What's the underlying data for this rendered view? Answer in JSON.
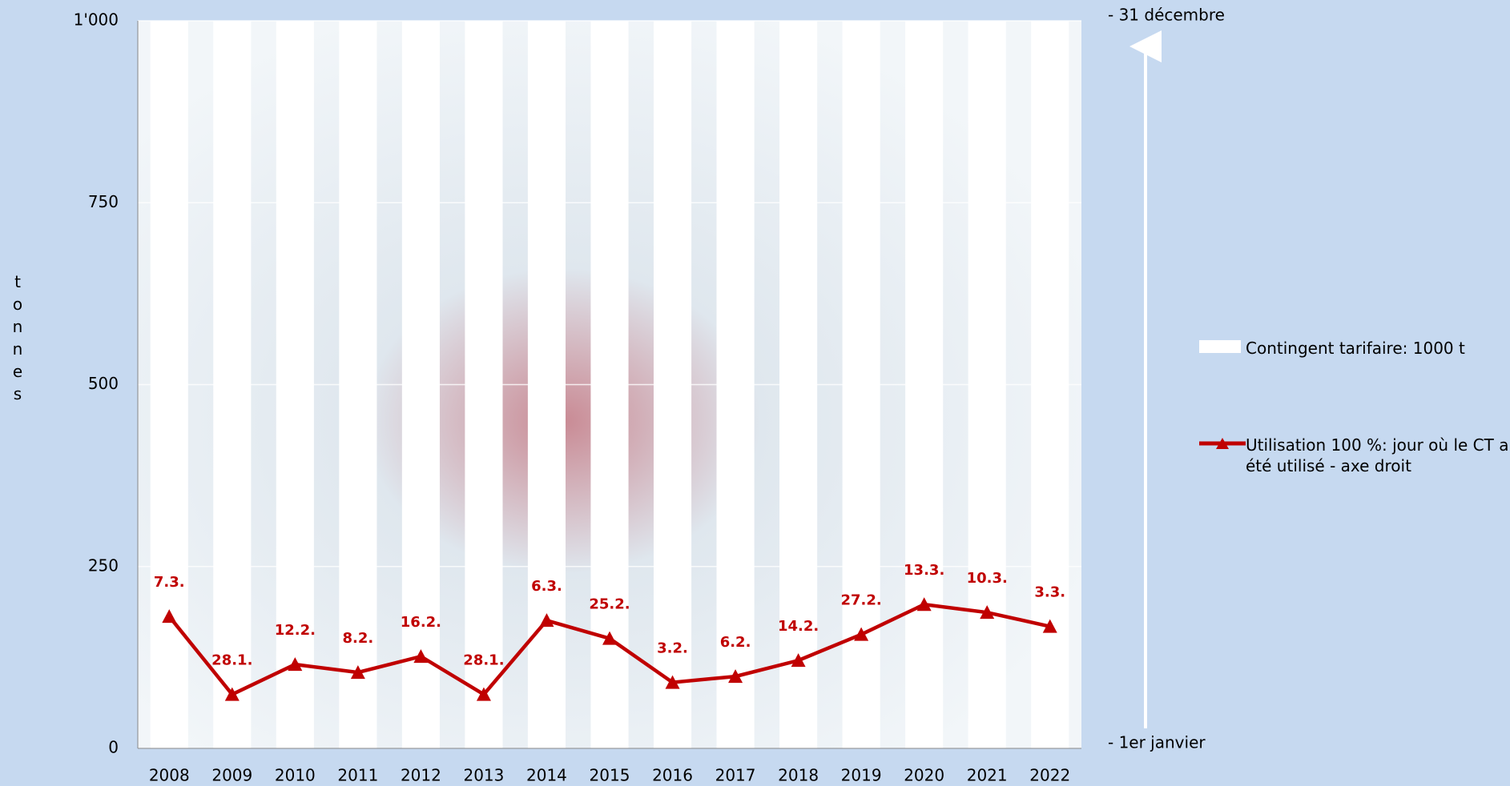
{
  "chart_data": {
    "type": "bar_line",
    "y_label": "tonnes",
    "categories": [
      "2008",
      "2009",
      "2010",
      "2011",
      "2012",
      "2013",
      "2014",
      "2015",
      "2016",
      "2017",
      "2018",
      "2019",
      "2020",
      "2021",
      "2022"
    ],
    "series": [
      {
        "name": "Contingent tarifaire: 1000 t",
        "type": "bar",
        "color": "#ffffff",
        "values": [
          1000,
          1000,
          1000,
          1000,
          1000,
          1000,
          1000,
          1000,
          1000,
          1000,
          1000,
          1000,
          1000,
          1000,
          1000
        ]
      },
      {
        "name": "Utilisation 100 %: jour où le CT a été utilisé - axe droit",
        "type": "line",
        "axis": "y2",
        "color": "#c00000",
        "values": [
          67,
          28,
          43,
          39,
          47,
          28,
          65,
          56,
          34,
          37,
          45,
          58,
          73,
          69,
          62
        ],
        "value_labels": [
          "7.3.",
          "28.1.",
          "12.2.",
          "8.2.",
          "16.2.",
          "28.1.",
          "6.3.",
          "25.2.",
          "3.2.",
          "6.2.",
          "14.2.",
          "27.2.",
          "13.3.",
          "10.3.",
          "3.3."
        ]
      }
    ],
    "ylim": [
      0,
      1000
    ],
    "yticks": [
      0,
      250,
      500,
      750,
      {
        "value": 1000,
        "label": "1'000"
      }
    ],
    "y2lim": [
      1,
      365
    ],
    "y2ticks": [
      {
        "value": 1,
        "label": "- 1er janvier"
      },
      {
        "value": 365,
        "label": "- 31 décembre"
      }
    ],
    "grid": true,
    "legend": "right"
  }
}
